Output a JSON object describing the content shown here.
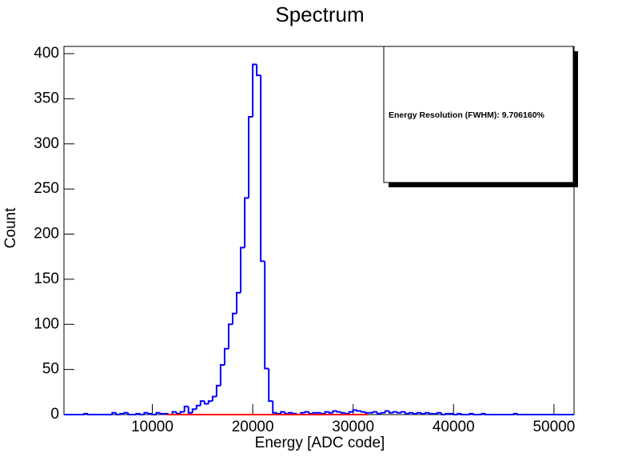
{
  "chart_data": {
    "type": "histogram",
    "title": "Spectrum",
    "x_label": "Energy [ADC code]",
    "y_label": "Count",
    "annotation": "Energy Resolution (FWHM): 9.706160%",
    "color": "#0000ff",
    "bins": [
      1200,
      1600,
      2000,
      2400,
      2800,
      3200,
      3600,
      4000,
      4400,
      4800,
      5200,
      5600,
      6000,
      6400,
      6800,
      7200,
      7600,
      8000,
      8400,
      8800,
      9200,
      9600,
      10000,
      10400,
      10800,
      11200,
      11600,
      12000,
      12400,
      12800,
      13200,
      13600,
      14000,
      14400,
      14800,
      15200,
      15600,
      16000,
      16400,
      16800,
      17200,
      17600,
      18000,
      18400,
      18800,
      19200,
      19600,
      20000,
      20400,
      20800,
      21200,
      21600,
      22000,
      22400,
      22800,
      23200,
      23600,
      24000,
      24400,
      24800,
      25200,
      25600,
      26000,
      26400,
      26800,
      27200,
      27600,
      28000,
      28400,
      28800,
      29200,
      29600,
      30000,
      30400,
      30800,
      31200,
      31600,
      32000,
      32400,
      32800,
      33200,
      33600,
      34000,
      34400,
      34800,
      35200,
      35600,
      36000,
      36400,
      36800,
      37200,
      37600,
      38000,
      38400,
      38800,
      39200,
      39600,
      40000,
      40400,
      40800,
      41200,
      41600,
      42000,
      42400,
      42800,
      43200,
      43600,
      44000,
      44400,
      44800,
      45200,
      45600,
      46000,
      46400,
      46800,
      47200,
      47600,
      48000,
      48400,
      48800,
      49200,
      49600,
      50000,
      50400,
      50800,
      51200,
      51600,
      52000
    ],
    "values": [
      0,
      0,
      0,
      0,
      0,
      1,
      0,
      0,
      0,
      0,
      0,
      0,
      2,
      0,
      1,
      2,
      0,
      0,
      1,
      0,
      2,
      1,
      0,
      2,
      1,
      1,
      0,
      3,
      1,
      3,
      9,
      2,
      6,
      10,
      15,
      12,
      15,
      20,
      32,
      55,
      73,
      100,
      112,
      135,
      185,
      240,
      330,
      388,
      376,
      170,
      51,
      15,
      2,
      1,
      3,
      1,
      2,
      1,
      0,
      2,
      3,
      1,
      2,
      2,
      1,
      3,
      2,
      4,
      3,
      2,
      1,
      3,
      5,
      4,
      3,
      2,
      2,
      3,
      1,
      2,
      4,
      2,
      3,
      2,
      3,
      1,
      2,
      1,
      2,
      1,
      2,
      1,
      1,
      2,
      0,
      1,
      1,
      0,
      1,
      0,
      0,
      1,
      0,
      0,
      1,
      0,
      0,
      0,
      0,
      0,
      0,
      0,
      1,
      0,
      0,
      0,
      0,
      0,
      0,
      0,
      0,
      0,
      0,
      0,
      0,
      0,
      0
    ],
    "fit": {
      "color": "#ff0000",
      "x": [
        11500,
        31500
      ],
      "values": [
        0,
        0
      ]
    },
    "xlim": [
      1200,
      52000
    ],
    "xticks": [
      10000,
      20000,
      30000,
      40000,
      50000
    ],
    "ylim": [
      0,
      408
    ],
    "yticks": [
      0,
      50,
      100,
      150,
      200,
      250,
      300,
      350,
      400
    ]
  }
}
